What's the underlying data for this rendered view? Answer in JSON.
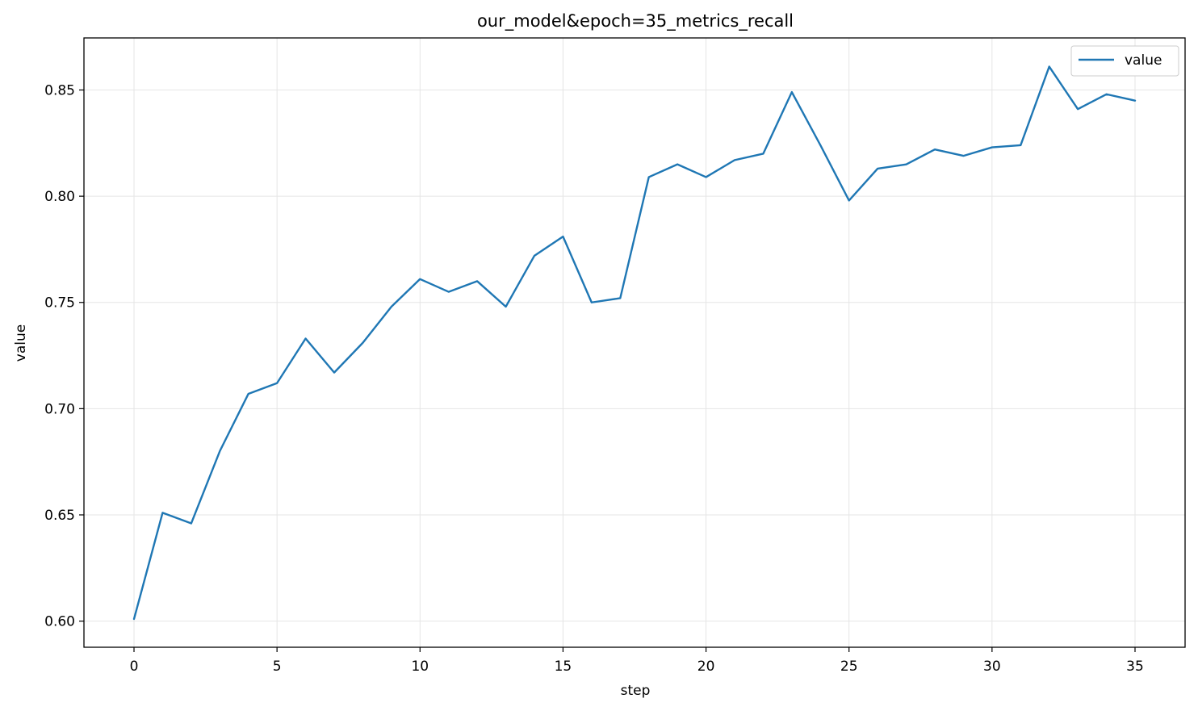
{
  "chart_data": {
    "type": "line",
    "title": "our_model&epoch=35_metrics_recall",
    "xlabel": "step",
    "ylabel": "value",
    "xlim": [
      -1.75,
      36.75
    ],
    "ylim": [
      0.5877,
      0.8745
    ],
    "xticks": [
      0,
      5,
      10,
      15,
      20,
      25,
      30,
      35
    ],
    "xtick_labels": [
      "0",
      "5",
      "10",
      "15",
      "20",
      "25",
      "30",
      "35"
    ],
    "yticks": [
      0.6,
      0.65,
      0.7,
      0.75,
      0.8,
      0.85
    ],
    "ytick_labels": [
      "0.60",
      "0.65",
      "0.70",
      "0.75",
      "0.80",
      "0.85"
    ],
    "grid": true,
    "legend_position": "top-right",
    "series": [
      {
        "name": "value",
        "color": "#1f77b4",
        "x": [
          0,
          1,
          2,
          3,
          4,
          5,
          6,
          7,
          8,
          9,
          10,
          11,
          12,
          13,
          14,
          15,
          16,
          17,
          18,
          19,
          20,
          21,
          22,
          23,
          24,
          25,
          26,
          27,
          28,
          29,
          30,
          31,
          32,
          33,
          34,
          35
        ],
        "y": [
          0.601,
          0.651,
          0.646,
          0.68,
          0.707,
          0.712,
          0.733,
          0.717,
          0.731,
          0.748,
          0.761,
          0.755,
          0.76,
          0.748,
          0.772,
          0.781,
          0.75,
          0.752,
          0.809,
          0.815,
          0.809,
          0.817,
          0.82,
          0.849,
          0.824,
          0.798,
          0.813,
          0.815,
          0.822,
          0.819,
          0.823,
          0.824,
          0.861,
          0.841,
          0.848,
          0.845
        ]
      }
    ]
  }
}
